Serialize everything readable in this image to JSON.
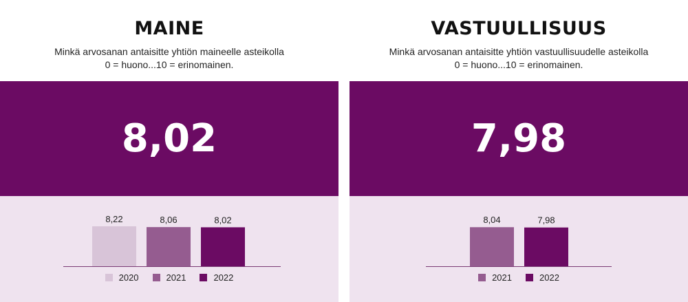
{
  "panels": [
    {
      "title": "MAINE",
      "subtitle_line1": "Minkä arvosanan antaisitte yhtiön maineelle asteikolla",
      "subtitle_line2": "0 = huono...10 = erinomainen.",
      "big_value": "8,02"
    },
    {
      "title": "VASTUULLISUUS",
      "subtitle_line1": "Minkä arvosanan antaisitte yhtiön vastuullisuudelle asteikolla",
      "subtitle_line2": "0 = huono...10 = erinomainen.",
      "big_value": "7,98"
    }
  ],
  "colors": {
    "2020": "#d8c4d8",
    "2021": "#955c90",
    "2022": "#6b0b63",
    "panel_bg": "#6b0b63",
    "chart_bg": "#efe3ef"
  },
  "chart_data": [
    {
      "type": "bar",
      "categories": [
        "2020",
        "2021",
        "2022"
      ],
      "values": [
        8.22,
        8.06,
        8.02
      ],
      "labels": [
        "8,22",
        "8,06",
        "8,02"
      ],
      "legend": [
        "2020",
        "2021",
        "2022"
      ],
      "legend_position": "bottom"
    },
    {
      "type": "bar",
      "categories": [
        "2021",
        "2022"
      ],
      "values": [
        8.04,
        7.98
      ],
      "labels": [
        "8,04",
        "7,98"
      ],
      "legend": [
        "2021",
        "2022"
      ],
      "legend_position": "bottom"
    }
  ]
}
